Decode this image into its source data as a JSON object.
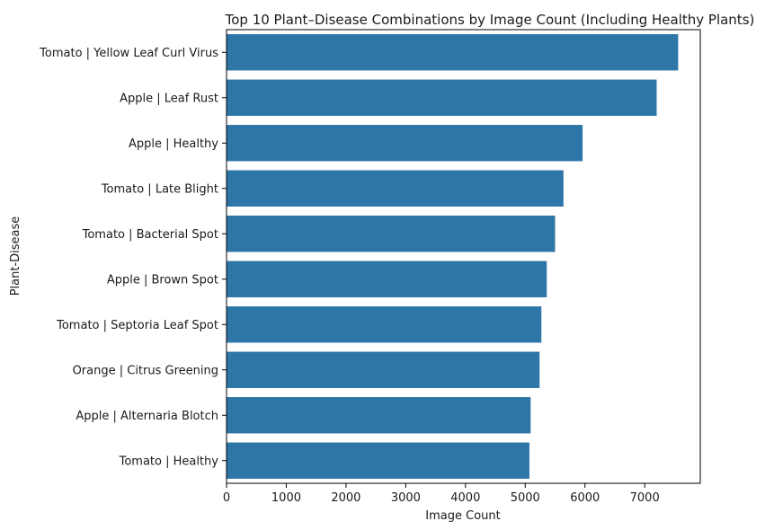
{
  "chart_data": {
    "type": "bar",
    "orientation": "horizontal",
    "title": "Top 10 Plant–Disease Combinations by Image Count (Including Healthy Plants)",
    "xlabel": "Image Count",
    "ylabel": "Plant-Disease",
    "xlim": [
      0,
      7930
    ],
    "xticks": [
      0,
      1000,
      2000,
      3000,
      4000,
      5000,
      6000,
      7000
    ],
    "categories": [
      "Tomato | Yellow Leaf Curl Virus",
      "Apple | Leaf Rust",
      "Apple | Healthy",
      "Tomato | Late Blight",
      "Tomato | Bacterial Spot",
      "Apple | Brown Spot",
      "Tomato | Septoria Leaf Spot",
      "Orange | Citrus Greening",
      "Apple | Alternaria Blotch",
      "Tomato | Healthy"
    ],
    "values": [
      7560,
      7200,
      5960,
      5640,
      5500,
      5360,
      5270,
      5240,
      5090,
      5070
    ],
    "bar_color": "#2e75a8",
    "grid": false,
    "legend": "none"
  }
}
